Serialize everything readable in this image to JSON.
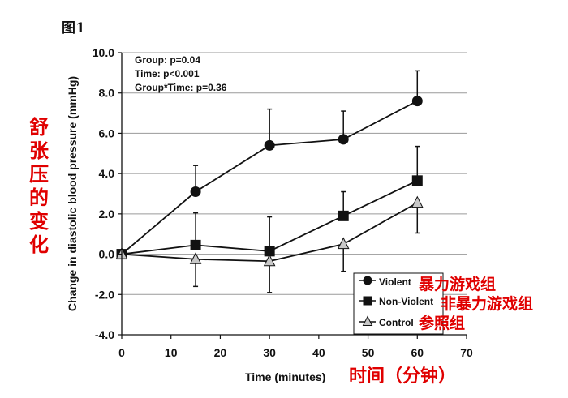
{
  "figure_label": "图1",
  "chart_data": {
    "type": "line",
    "xlabel": "Time (minutes)",
    "xlabel_cn": "时间（分钟）",
    "ylabel": "Change in diastolic blood pressure (mmHg)",
    "ylabel_cn": [
      "舒",
      "张",
      "压",
      "的",
      "变",
      "化"
    ],
    "xlim": [
      0,
      70
    ],
    "ylim": [
      -4.0,
      10.0
    ],
    "x_ticks": [
      "0",
      "10",
      "20",
      "30",
      "40",
      "50",
      "60",
      "70"
    ],
    "y_ticks": [
      "-4.0",
      "-2.0",
      "0.0",
      "2.0",
      "4.0",
      "6.0",
      "8.0",
      "10.0"
    ],
    "grid": "horizontal",
    "annotations": [
      "Group: p=0.04",
      "Time: p<0.001",
      "Group*Time: p=0.36"
    ],
    "legend_position": "bottom-right",
    "series": [
      {
        "name": "Violent",
        "name_cn": "暴力游戏组",
        "marker": "circle",
        "x": [
          0,
          15,
          30,
          45,
          60
        ],
        "values": [
          0.0,
          3.1,
          5.4,
          5.7,
          7.6
        ],
        "err_up": [
          0.0,
          1.3,
          1.8,
          1.4,
          1.5
        ],
        "err_down": [
          0.0,
          0.0,
          0.0,
          0.0,
          0.0
        ]
      },
      {
        "name": "Non-Violent",
        "name_cn": "非暴力游戏组",
        "marker": "square",
        "x": [
          0,
          15,
          30,
          45,
          60
        ],
        "values": [
          0.0,
          0.45,
          0.15,
          1.9,
          3.65
        ],
        "err_up": [
          0.0,
          1.6,
          1.7,
          1.2,
          1.7
        ],
        "err_down": [
          0.0,
          0.0,
          0.0,
          0.0,
          0.0
        ]
      },
      {
        "name": "Control",
        "name_cn": "参照组",
        "marker": "triangle",
        "x": [
          0,
          15,
          30,
          45,
          60
        ],
        "values": [
          0.0,
          -0.25,
          -0.35,
          0.5,
          2.55
        ],
        "err_up": [
          0.0,
          0.0,
          0.0,
          0.0,
          0.0
        ],
        "err_down": [
          0.0,
          1.35,
          1.55,
          1.35,
          1.5
        ]
      }
    ]
  }
}
